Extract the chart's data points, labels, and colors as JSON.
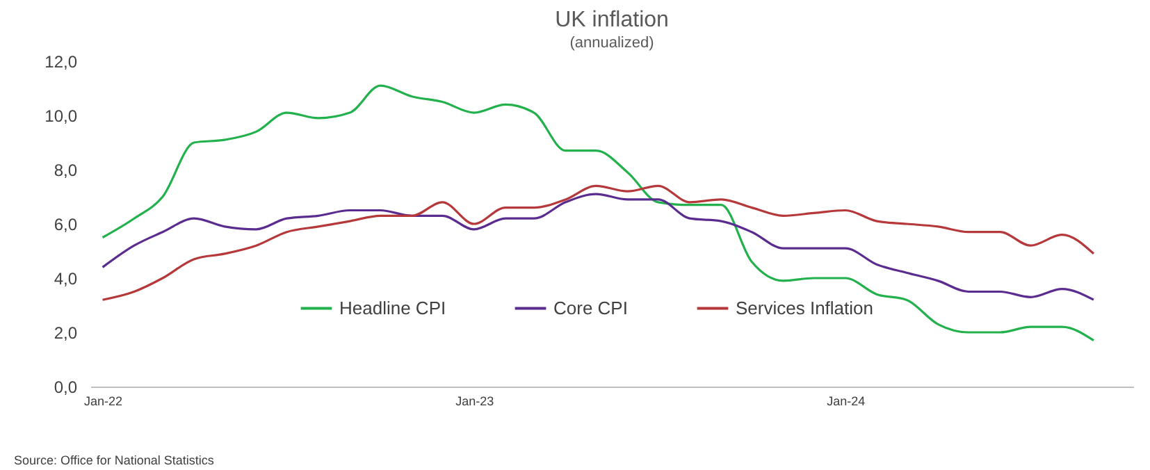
{
  "chart_data": {
    "type": "line",
    "title": "UK inflation",
    "subtitle": "(annualized)",
    "x": [
      "2022-01",
      "2022-02",
      "2022-03",
      "2022-04",
      "2022-05",
      "2022-06",
      "2022-07",
      "2022-08",
      "2022-09",
      "2022-10",
      "2022-11",
      "2022-12",
      "2023-01",
      "2023-02",
      "2023-03",
      "2023-04",
      "2023-05",
      "2023-06",
      "2023-07",
      "2023-08",
      "2023-09",
      "2023-10",
      "2023-11",
      "2023-12",
      "2024-01",
      "2024-02",
      "2024-03",
      "2024-04",
      "2024-05",
      "2024-06",
      "2024-07",
      "2024-08",
      "2024-09"
    ],
    "series": [
      {
        "name": "Headline CPI",
        "color": "#22b14c",
        "values": [
          5.5,
          6.2,
          7.0,
          9.0,
          9.1,
          9.4,
          10.1,
          9.9,
          10.1,
          11.1,
          10.7,
          10.5,
          10.1,
          10.4,
          10.1,
          8.7,
          8.7,
          7.9,
          6.8,
          6.7,
          6.7,
          4.6,
          3.9,
          4.0,
          4.0,
          3.4,
          3.2,
          2.3,
          2.0,
          2.0,
          2.2,
          2.2,
          1.7
        ]
      },
      {
        "name": "Core CPI",
        "color": "#5b2c8f",
        "values": [
          4.4,
          5.2,
          5.7,
          6.2,
          5.9,
          5.8,
          6.2,
          6.3,
          6.5,
          6.5,
          6.3,
          6.3,
          5.8,
          6.2,
          6.2,
          6.8,
          7.1,
          6.9,
          6.9,
          6.2,
          6.1,
          5.7,
          5.1,
          5.1,
          5.1,
          4.5,
          4.2,
          3.9,
          3.5,
          3.5,
          3.3,
          3.6,
          3.2
        ]
      },
      {
        "name": "Services Inflation",
        "color": "#b5383a",
        "values": [
          3.2,
          3.5,
          4.0,
          4.7,
          4.9,
          5.2,
          5.7,
          5.9,
          6.1,
          6.3,
          6.3,
          6.8,
          6.0,
          6.6,
          6.6,
          6.9,
          7.4,
          7.2,
          7.4,
          6.8,
          6.9,
          6.6,
          6.3,
          6.4,
          6.5,
          6.1,
          6.0,
          5.9,
          5.7,
          5.7,
          5.2,
          5.6,
          4.9
        ]
      }
    ],
    "xlim": [
      "2021-12-20",
      "2024-10-10"
    ],
    "xticks": [
      {
        "value": "2022-01",
        "label": "Jan-22"
      },
      {
        "value": "2023-01",
        "label": "Jan-23"
      },
      {
        "value": "2024-01",
        "label": "Jan-24"
      }
    ],
    "ylim": [
      0,
      12
    ],
    "yticks": [
      {
        "value": 0,
        "label": "0,0"
      },
      {
        "value": 2,
        "label": "2,0"
      },
      {
        "value": 4,
        "label": "4,0"
      },
      {
        "value": 6,
        "label": "6,0"
      },
      {
        "value": 8,
        "label": "8,0"
      },
      {
        "value": 10,
        "label": "10,0"
      },
      {
        "value": 12,
        "label": "12,0"
      }
    ],
    "grid": false,
    "legend": "bottom",
    "marker": "none",
    "line_style": "solid",
    "annotations": [
      "Source: Office for National Statistics"
    ]
  }
}
